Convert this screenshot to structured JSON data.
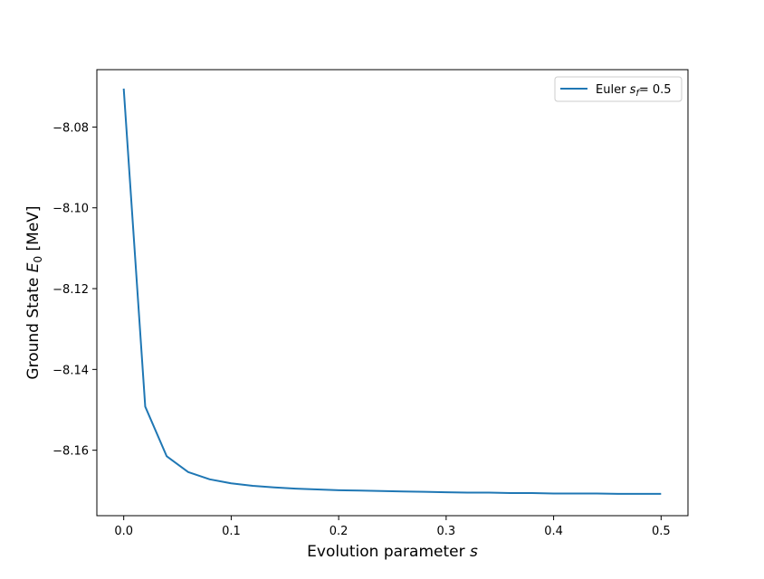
{
  "chart_data": {
    "type": "line",
    "xlabel": "Evolution parameter",
    "xlabel_var": "s",
    "ylabel": "Ground State",
    "ylabel_var": "E",
    "ylabel_sub": "0",
    "ylabel_unit": "[MeV]",
    "xlim": [
      -0.025,
      0.525
    ],
    "ylim": [
      -8.1762,
      -8.0658
    ],
    "x_ticks": [
      0.0,
      0.1,
      0.2,
      0.3,
      0.4,
      0.5
    ],
    "x_tick_labels": [
      "0.0",
      "0.1",
      "0.2",
      "0.3",
      "0.4",
      "0.5"
    ],
    "y_ticks": [
      -8.08,
      -8.1,
      -8.12,
      -8.14,
      -8.16
    ],
    "y_tick_labels": [
      "−8.08",
      "−8.10",
      "−8.12",
      "−8.14",
      "−8.16"
    ],
    "grid": false,
    "legend_position": "upper right",
    "series": [
      {
        "legend_prefix": "Euler",
        "legend_var": "s",
        "legend_sub": "f",
        "legend_suffix": "= 0.5",
        "color": "#1f77b4",
        "x": [
          0.0,
          0.02,
          0.04,
          0.06,
          0.08,
          0.1,
          0.12,
          0.14,
          0.16,
          0.18,
          0.2,
          0.22,
          0.24,
          0.26,
          0.28,
          0.3,
          0.32,
          0.34,
          0.36,
          0.38,
          0.4,
          0.42,
          0.44,
          0.46,
          0.48,
          0.5
        ],
        "y": [
          -8.0705,
          -8.1492,
          -8.1615,
          -8.1654,
          -8.1672,
          -8.1682,
          -8.1688,
          -8.1692,
          -8.1695,
          -8.1697,
          -8.1699,
          -8.17,
          -8.1701,
          -8.1702,
          -8.1703,
          -8.1704,
          -8.1705,
          -8.1705,
          -8.1706,
          -8.1706,
          -8.1707,
          -8.1707,
          -8.1707,
          -8.1708,
          -8.1708,
          -8.1708
        ]
      }
    ]
  }
}
